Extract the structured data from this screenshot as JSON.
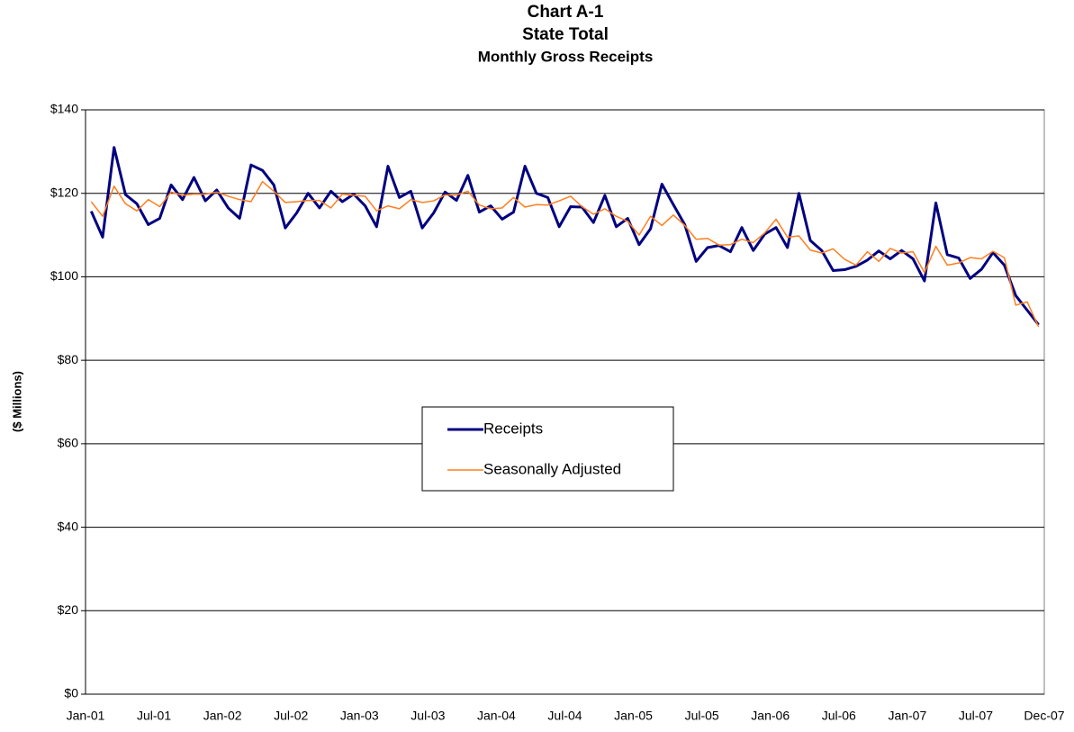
{
  "chart_data": {
    "type": "line",
    "title_lines": [
      "Chart A-1",
      "State Total",
      "Monthly Gross Receipts"
    ],
    "y_label": "($ Millions)",
    "categories": [
      "Jan-01",
      null,
      null,
      null,
      null,
      null,
      "Jul-01",
      null,
      null,
      null,
      null,
      null,
      "Jan-02",
      null,
      null,
      null,
      null,
      null,
      "Jul-02",
      null,
      null,
      null,
      null,
      null,
      "Jan-03",
      null,
      null,
      null,
      null,
      null,
      "Jul-03",
      null,
      null,
      null,
      null,
      null,
      "Jan-04",
      null,
      null,
      null,
      null,
      null,
      "Jul-04",
      null,
      null,
      null,
      null,
      null,
      "Jan-05",
      null,
      null,
      null,
      null,
      null,
      "Jul-05",
      null,
      null,
      null,
      null,
      null,
      "Jan-06",
      null,
      null,
      null,
      null,
      null,
      "Jul-06",
      null,
      null,
      null,
      null,
      null,
      "Jan-07",
      null,
      null,
      null,
      null,
      null,
      "Jul-07",
      null,
      null,
      null,
      null,
      "Dec-07"
    ],
    "series": [
      {
        "name": "Receipts",
        "color": "#000080",
        "width": 3,
        "values": [
          115.7,
          109.5,
          131,
          119.7,
          117.5,
          112.5,
          114,
          122,
          118.5,
          123.8,
          118.2,
          120.8,
          116.5,
          114,
          126.8,
          125.5,
          122,
          111.7,
          115.3,
          120,
          116.5,
          120.5,
          118,
          119.8,
          117,
          112,
          126.5,
          119,
          120.5,
          111.7,
          115.3,
          120.3,
          118.3,
          124.3,
          115.5,
          117,
          113.8,
          115.5,
          126.5,
          120,
          119,
          112,
          116.8,
          116.7,
          113,
          119.5,
          112,
          114,
          107.7,
          111.5,
          122.2,
          117.3,
          112.5,
          103.7,
          107,
          107.5,
          106,
          111.8,
          106.3,
          110.2,
          111.8,
          107,
          120,
          108.7,
          106.3,
          101.5,
          101.7,
          102.5,
          104,
          106.2,
          104.3,
          106.3,
          104.3,
          99,
          117.7,
          105.3,
          104.5,
          99.6,
          101.8,
          105.8,
          102.8,
          95.5,
          92,
          88.5
        ]
      },
      {
        "name": "Seasonally Adjusted",
        "color": "#ff7f1e",
        "width": 1.5,
        "values": [
          118,
          114.5,
          121.7,
          117.5,
          115.8,
          118.5,
          116.8,
          120.3,
          119.5,
          119.8,
          119.8,
          120.3,
          119.3,
          118.5,
          118,
          122.8,
          120.5,
          117.8,
          118,
          118.3,
          118.3,
          116.5,
          119.8,
          119.5,
          119.3,
          115.8,
          117,
          116.3,
          118.5,
          117.8,
          118.2,
          119.6,
          119.6,
          120.5,
          117.2,
          116.3,
          116.5,
          119,
          116.7,
          117.3,
          117.2,
          118.2,
          119.3,
          116.8,
          115,
          116.3,
          114.5,
          113.3,
          110,
          114.5,
          112.3,
          114.8,
          112.3,
          109,
          109.2,
          107.6,
          107.7,
          109,
          108.2,
          110.5,
          113.8,
          109.5,
          109.8,
          106.4,
          105.7,
          106.7,
          104.2,
          102.8,
          106,
          103.7,
          106.8,
          105.7,
          106,
          101,
          107.3,
          102.8,
          103.3,
          104.6,
          104.3,
          106.1,
          104.6,
          93.2,
          94,
          88
        ]
      }
    ],
    "ylim": [
      0,
      140
    ],
    "yticks": [
      {
        "value": 0,
        "label": "$0"
      },
      {
        "value": 20,
        "label": "$20"
      },
      {
        "value": 40,
        "label": "$40"
      },
      {
        "value": 60,
        "label": "$60"
      },
      {
        "value": 80,
        "label": "$80"
      },
      {
        "value": 100,
        "label": "$100"
      },
      {
        "value": 120,
        "label": "$120"
      },
      {
        "value": 140,
        "label": "$140"
      }
    ],
    "grid": true,
    "legend": "center"
  }
}
